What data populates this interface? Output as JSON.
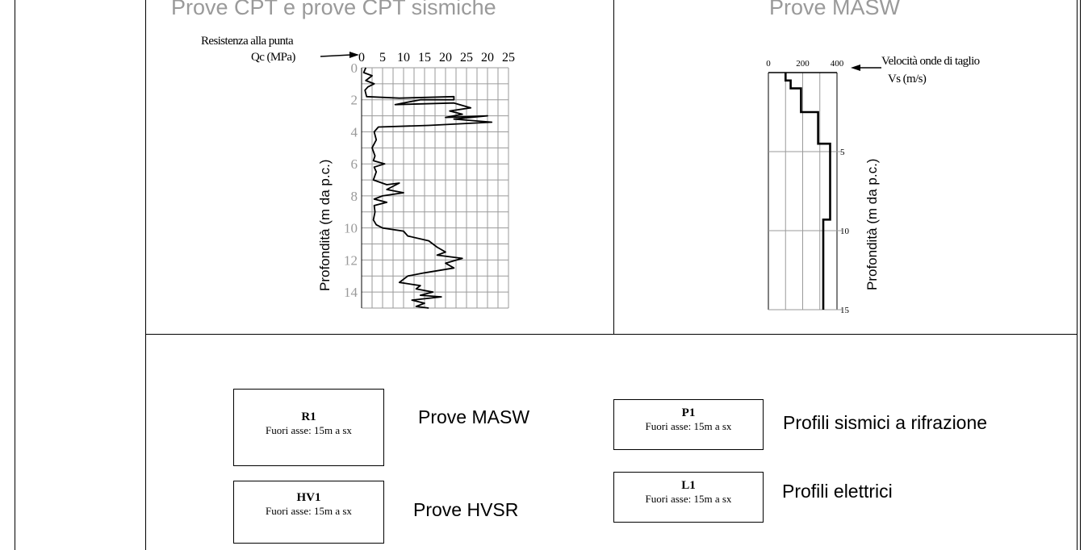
{
  "panels": {
    "cpt": {
      "title": "Prove CPT e prove CPT sismiche",
      "callout_line1": "Resistenza alla punta",
      "callout_line2": "Qc (MPa)",
      "ylabel": "Profondità (m da p.c.)",
      "x_ticks": [
        "0",
        "5",
        "10",
        "15",
        "20",
        "25",
        "20",
        "25"
      ],
      "y_ticks": [
        "0",
        "2",
        "4",
        "6",
        "8",
        "10",
        "12",
        "14"
      ]
    },
    "masw": {
      "title": "Prove MASW",
      "callout_line1": "Velocità onde di taglio",
      "callout_line2": "Vs (m/s)",
      "ylabel": "Profondità (m da p.c.)",
      "x_ticks": [
        "0",
        "200",
        "400"
      ],
      "y_ticks": [
        "5",
        "10",
        "15"
      ]
    }
  },
  "legend": {
    "items": [
      {
        "code": "R1",
        "position": "Fuori asse:  15m a sx",
        "label": "Prove MASW"
      },
      {
        "code": "HV1",
        "position": "Fuori asse:  15m a sx",
        "label": "Prove HVSR"
      },
      {
        "code": "P1",
        "position": "Fuori asse:  15m a sx",
        "label": "Profili sismici a rifrazione"
      },
      {
        "code": "L1",
        "position": "Fuori asse:  15m a sx",
        "label": "Profili elettrici"
      }
    ]
  },
  "chart_data": [
    {
      "type": "line",
      "title": "",
      "xlabel": "Qc (MPa)",
      "ylabel": "Profondità (m da p.c.)",
      "x_axis_position": "top",
      "y_inverted": true,
      "xlim": [
        0,
        35
      ],
      "ylim": [
        0,
        15
      ],
      "grid": true,
      "series": [
        {
          "points": [
            [
              1,
              0
            ],
            [
              0.5,
              0.3
            ],
            [
              2.5,
              0.5
            ],
            [
              1,
              0.8
            ],
            [
              3,
              1.0
            ],
            [
              1.5,
              1.2
            ],
            [
              0.8,
              1.4
            ],
            [
              1.2,
              1.8
            ],
            [
              9,
              1.9
            ],
            [
              22,
              1.8
            ],
            [
              22,
              2.0
            ],
            [
              14,
              2.0
            ],
            [
              8,
              2.3
            ],
            [
              22,
              2.2
            ],
            [
              26,
              2.5
            ],
            [
              21,
              2.7
            ],
            [
              24,
              2.9
            ],
            [
              20,
              3.1
            ],
            [
              30,
              3.0
            ],
            [
              22,
              3.2
            ],
            [
              31,
              3.4
            ],
            [
              16,
              3.6
            ],
            [
              4,
              3.7
            ],
            [
              3,
              4.0
            ],
            [
              3.5,
              4.5
            ],
            [
              2.5,
              5.0
            ],
            [
              3.2,
              5.5
            ],
            [
              2.8,
              5.8
            ],
            [
              5.5,
              6.0
            ],
            [
              3,
              6.2
            ],
            [
              3.5,
              6.5
            ],
            [
              2.8,
              7.0
            ],
            [
              6,
              7.3
            ],
            [
              9,
              7.2
            ],
            [
              6,
              7.6
            ],
            [
              10,
              7.8
            ],
            [
              5,
              8.0
            ],
            [
              3,
              8.2
            ],
            [
              6,
              8.4
            ],
            [
              3,
              8.6
            ],
            [
              3.2,
              9.0
            ],
            [
              2.8,
              9.5
            ],
            [
              3.5,
              9.8
            ],
            [
              5,
              10.0
            ],
            [
              10,
              10.2
            ],
            [
              11,
              10.5
            ],
            [
              16,
              10.8
            ],
            [
              18,
              11.2
            ],
            [
              20,
              11.5
            ],
            [
              18,
              11.7
            ],
            [
              24,
              11.9
            ],
            [
              20,
              12.2
            ],
            [
              22,
              12.5
            ],
            [
              15,
              12.8
            ],
            [
              11,
              13.0
            ],
            [
              9,
              13.4
            ],
            [
              14,
              13.6
            ],
            [
              13,
              13.8
            ],
            [
              17,
              14.0
            ],
            [
              14,
              14.2
            ],
            [
              19,
              14.3
            ],
            [
              12,
              14.5
            ],
            [
              15,
              14.7
            ],
            [
              13,
              14.9
            ],
            [
              16,
              15.0
            ]
          ]
        }
      ]
    },
    {
      "type": "line",
      "title": "",
      "xlabel": "Vs (m/s)",
      "ylabel": "Profondità (m da p.c.)",
      "x_axis_position": "top",
      "y_inverted": true,
      "xlim": [
        0,
        400
      ],
      "ylim": [
        0,
        15
      ],
      "grid": true,
      "series": [
        {
          "points": [
            [
              100,
              0
            ],
            [
              100,
              0.5
            ],
            [
              130,
              0.5
            ],
            [
              130,
              1.0
            ],
            [
              190,
              1.0
            ],
            [
              190,
              2.5
            ],
            [
              290,
              2.5
            ],
            [
              290,
              4.5
            ],
            [
              360,
              4.5
            ],
            [
              360,
              9.3
            ],
            [
              320,
              9.3
            ],
            [
              320,
              15
            ]
          ]
        }
      ]
    }
  ]
}
